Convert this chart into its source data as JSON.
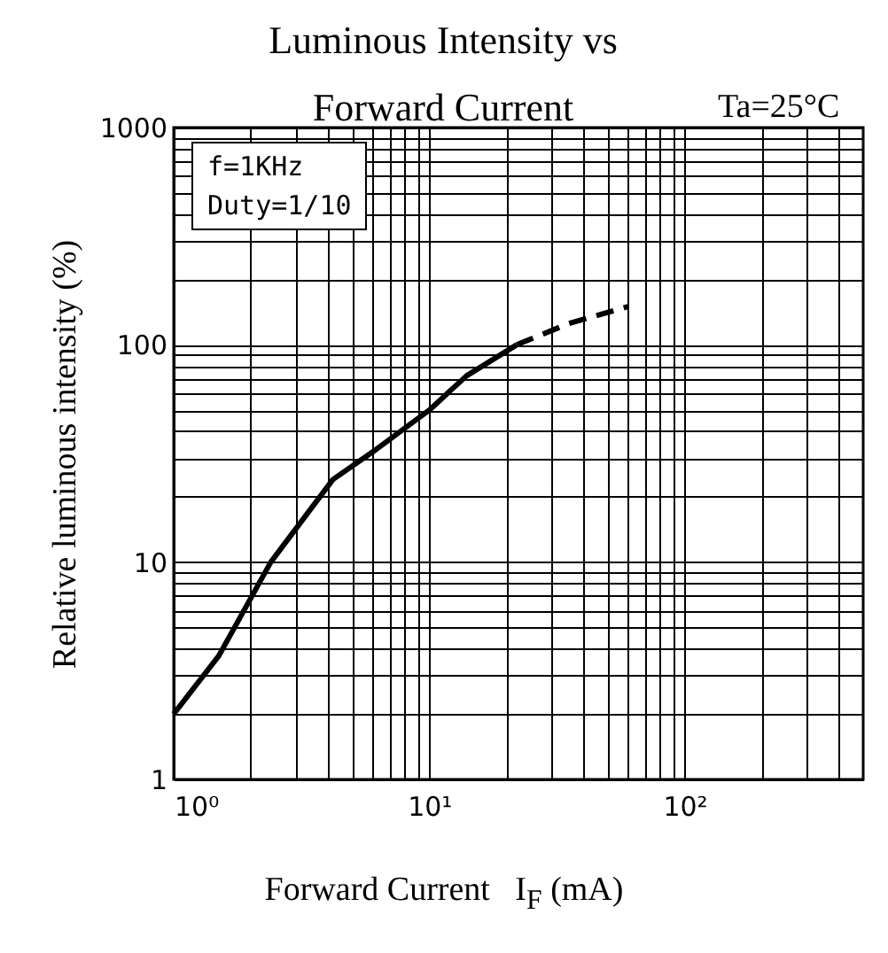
{
  "chart_data": {
    "type": "line",
    "title": "Luminous Intensity vs Forward Current",
    "xlabel": "Forward Current   I$_{F}$ (mA)",
    "ylabel": "Relative luminous intensity (%)",
    "annotations": [
      "f=1KHz\nDuty=1/10",
      "Ta=25°C"
    ],
    "series": [
      {
        "color": "#000000",
        "line_style": "solid",
        "x": [
          1,
          1.5,
          2.4,
          4.2,
          6.2,
          10,
          14,
          22
        ],
        "values": [
          2,
          3.7,
          10,
          24,
          33,
          50,
          72,
          100
        ]
      },
      {
        "color": "#000000",
        "line_style": "dashed",
        "x": [
          22,
          35,
          60
        ],
        "values": [
          100,
          125,
          150
        ]
      }
    ],
    "log": "xy",
    "grid": true,
    "marker": "none",
    "xlim": [
      1,
      500
    ],
    "xticks": [
      {
        "value": 1,
        "label": "10⁰"
      },
      {
        "value": 2,
        "label": null
      },
      {
        "value": 3,
        "label": null
      },
      {
        "value": 4,
        "label": null
      },
      {
        "value": 5,
        "label": null
      },
      {
        "value": 6,
        "label": null
      },
      {
        "value": 7,
        "label": null
      },
      {
        "value": 8,
        "label": null
      },
      {
        "value": 9,
        "label": null
      },
      {
        "value": 10,
        "label": "10¹"
      },
      {
        "value": 20,
        "label": null
      },
      {
        "value": 30,
        "label": null
      },
      {
        "value": 40,
        "label": null
      },
      {
        "value": 50,
        "label": null
      },
      {
        "value": 60,
        "label": null
      },
      {
        "value": 70,
        "label": null
      },
      {
        "value": 80,
        "label": null
      },
      {
        "value": 90,
        "label": null
      },
      {
        "value": 100,
        "label": "10²"
      },
      {
        "value": 200,
        "label": null
      },
      {
        "value": 300,
        "label": null
      },
      {
        "value": 400,
        "label": null
      }
    ],
    "ylim": [
      1,
      1000
    ],
    "yticks": [
      1,
      {
        "value": 2,
        "label": null
      },
      {
        "value": 3,
        "label": null
      },
      {
        "value": 4,
        "label": null
      },
      {
        "value": 5,
        "label": null
      },
      {
        "value": 6,
        "label": null
      },
      {
        "value": 7,
        "label": null
      },
      {
        "value": 8,
        "label": null
      },
      {
        "value": 9,
        "label": null
      },
      10,
      {
        "value": 20,
        "label": null
      },
      {
        "value": 30,
        "label": null
      },
      {
        "value": 40,
        "label": null
      },
      {
        "value": 50,
        "label": null
      },
      {
        "value": 60,
        "label": null
      },
      {
        "value": 70,
        "label": null
      },
      {
        "value": 80,
        "label": null
      },
      {
        "value": 90,
        "label": null
      },
      100,
      {
        "value": 200,
        "label": null
      },
      {
        "value": 300,
        "label": null
      },
      {
        "value": 400,
        "label": null
      },
      {
        "value": 500,
        "label": null
      },
      {
        "value": 600,
        "label": null
      },
      {
        "value": 700,
        "label": null
      },
      {
        "value": 800,
        "label": null
      },
      {
        "value": 900,
        "label": null
      },
      1000
    ]
  }
}
